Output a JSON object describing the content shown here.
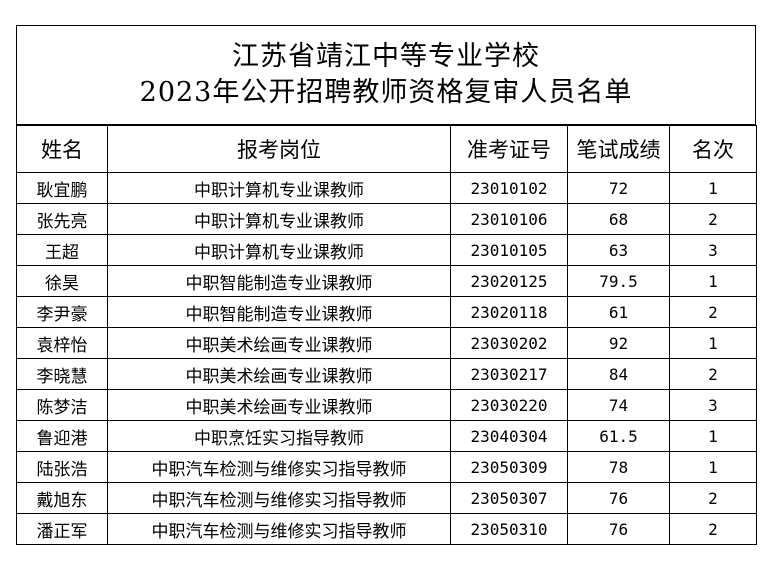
{
  "title": {
    "line1": "江苏省靖江中等专业学校",
    "line2": "2023年公开招聘教师资格复审人员名单"
  },
  "table": {
    "headers": [
      "姓名",
      "报考岗位",
      "准考证号",
      "笔试成绩",
      "名次"
    ],
    "rows": [
      [
        "耿宜鹏",
        "中职计算机专业课教师",
        "23010102",
        "72",
        "1"
      ],
      [
        "张先亮",
        "中职计算机专业课教师",
        "23010106",
        "68",
        "2"
      ],
      [
        "王超",
        "中职计算机专业课教师",
        "23010105",
        "63",
        "3"
      ],
      [
        "徐昊",
        "中职智能制造专业课教师",
        "23020125",
        "79.5",
        "1"
      ],
      [
        "李尹豪",
        "中职智能制造专业课教师",
        "23020118",
        "61",
        "2"
      ],
      [
        "袁梓怡",
        "中职美术绘画专业课教师",
        "23030202",
        "92",
        "1"
      ],
      [
        "李晓慧",
        "中职美术绘画专业课教师",
        "23030217",
        "84",
        "2"
      ],
      [
        "陈梦洁",
        "中职美术绘画专业课教师",
        "23030220",
        "74",
        "3"
      ],
      [
        "鲁迎港",
        "中职烹饪实习指导教师",
        "23040304",
        "61.5",
        "1"
      ],
      [
        "陆张浩",
        "中职汽车检测与维修实习指导教师",
        "23050309",
        "78",
        "1"
      ],
      [
        "戴旭东",
        "中职汽车检测与维修实习指导教师",
        "23050307",
        "76",
        "2"
      ],
      [
        "潘正军",
        "中职汽车检测与维修实习指导教师",
        "23050310",
        "76",
        "2"
      ]
    ]
  }
}
